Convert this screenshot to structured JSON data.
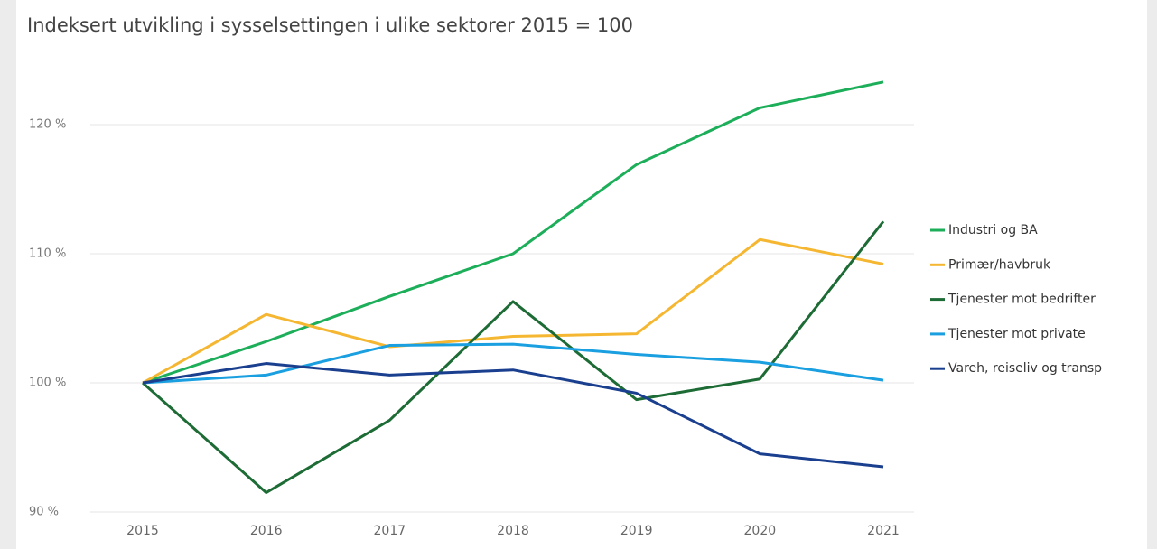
{
  "chart_data": {
    "type": "line",
    "title": "Indeksert utvikling i sysselsettingen i ulike sektorer 2015 = 100",
    "categories": [
      "2015",
      "2016",
      "2017",
      "2018",
      "2019",
      "2020",
      "2021"
    ],
    "series": [
      {
        "name": "Industri og BA",
        "color": "#1dae5a",
        "values": [
          100,
          103.2,
          106.7,
          110.0,
          116.9,
          121.3,
          123.3
        ]
      },
      {
        "name": "Primær/havbruk",
        "color": "#f5b731",
        "values": [
          100,
          105.3,
          102.8,
          103.6,
          103.8,
          111.1,
          109.2
        ]
      },
      {
        "name": "Tjenester mot bedrifter",
        "color": "#1d6b35",
        "values": [
          100,
          91.5,
          97.1,
          106.3,
          98.7,
          100.3,
          112.5
        ]
      },
      {
        "name": "Tjenester mot private",
        "color": "#1a9fe0",
        "values": [
          100,
          100.6,
          102.9,
          103.0,
          102.2,
          101.6,
          100.2
        ]
      },
      {
        "name": "Vareh, reiseliv og transp",
        "color": "#1a3f8f",
        "values": [
          100,
          101.5,
          100.6,
          101.0,
          99.2,
          94.5,
          93.5
        ]
      }
    ],
    "ylim": [
      90,
      125
    ],
    "yticks": [
      {
        "value": 90,
        "label": "90 %"
      },
      {
        "value": 100,
        "label": "100 %"
      },
      {
        "value": 110,
        "label": "110 %"
      },
      {
        "value": 120,
        "label": "120 %"
      }
    ],
    "grid": true,
    "legend": "right"
  }
}
